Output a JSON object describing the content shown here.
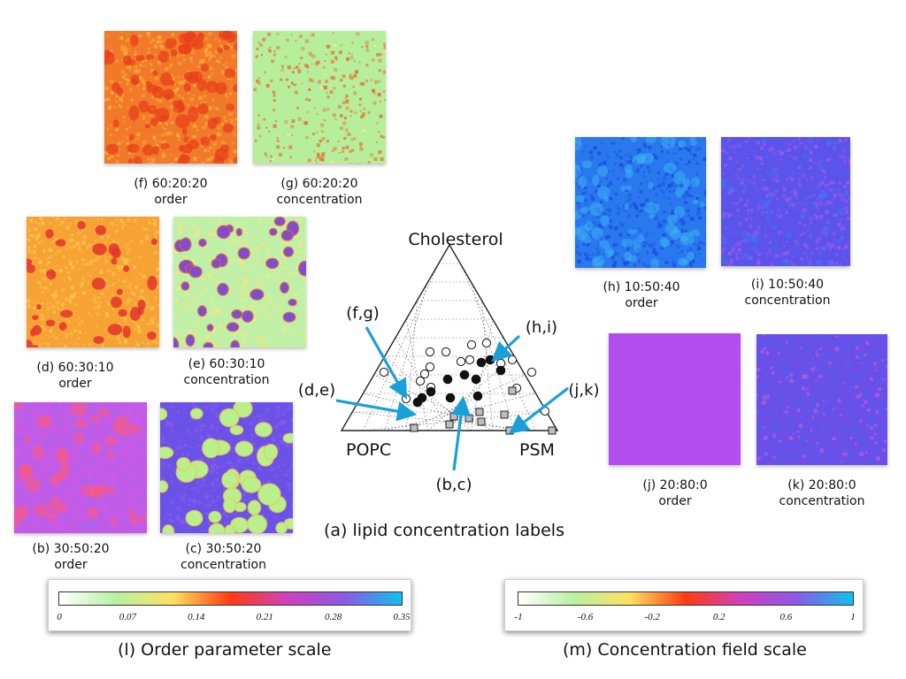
{
  "panels": {
    "f": {
      "label": "(f) 60:20:20",
      "sub": "order",
      "base": "#f07a2a",
      "spots": "#e8401a",
      "noise": "#ffb33a",
      "kind": "order-fine"
    },
    "g": {
      "label": "(g) 60:20:20",
      "sub": "concentration",
      "base": "#b6ee9c",
      "spots": "#fff07a",
      "noise": "#e86a2a",
      "kind": "conc-uniform"
    },
    "d": {
      "label": "(d) 60:30:10",
      "sub": "order",
      "base": "#f6a235",
      "spots": "#e3352a",
      "noise": "#ffc84c",
      "kind": "order-domains"
    },
    "e": {
      "label": "(e) 60:30:10",
      "sub": "concentration",
      "base": "#bff0a8",
      "spots": "#7a4ad8",
      "noise": "#f2e87e",
      "kind": "conc-domains"
    },
    "b": {
      "label": "(b) 30:50:20",
      "sub": "order",
      "base": "#c45ae6",
      "spots": "#ff5a7a",
      "noise": "#9a6af0",
      "kind": "order-b"
    },
    "c": {
      "label": "(c) 30:50:20",
      "sub": "concentration",
      "base": "#6a52e8",
      "spots": "#b9f08c",
      "noise": "#8a5ae8",
      "kind": "conc-c"
    },
    "h": {
      "label": "(h) 10:50:40",
      "sub": "order",
      "base": "#2a78ee",
      "spots": "#3ab0f4",
      "noise": "#1a4ae0",
      "kind": "order-h"
    },
    "i": {
      "label": "(i) 10:50:40",
      "sub": "concentration",
      "base": "#5a54ec",
      "spots": "#3a78f0",
      "noise": "#9a5ae8",
      "kind": "conc-i"
    },
    "j": {
      "label": "(j) 20:80:0",
      "sub": "order",
      "base": "#b24ef0",
      "spots": "#b24ef0",
      "noise": "#b24ef0",
      "kind": "flat"
    },
    "k": {
      "label": "(k) 20:80:0",
      "sub": "concentration",
      "base": "#6a50e8",
      "spots": "#b65ad8",
      "noise": "#4a62ee",
      "kind": "conc-k"
    }
  },
  "ternary": {
    "top_label": "Cholesterol",
    "left_label": "POPC",
    "right_label": "PSM",
    "callouts": {
      "fg": "(f,g)",
      "hi": "(h,i)",
      "de": "(d,e)",
      "jk": "(j,k)",
      "bc": "(b,c)"
    },
    "caption": "(a)  lipid concentration labels"
  },
  "order_scale": {
    "caption": "(l) Order parameter scale",
    "ticks": [
      "0",
      "0.07",
      "0.14",
      "0.21",
      "0.28",
      "0.35"
    ],
    "colors": [
      "#ffffff",
      "#b8f0a0",
      "#ffe060",
      "#ff3a10",
      "#d040c0",
      "#8a5ae8",
      "#10c0f0"
    ]
  },
  "conc_scale": {
    "caption": "(m) Concentration field scale",
    "ticks": [
      "-1",
      "-0.6",
      "-0.2",
      "0.2",
      "0.6",
      "1"
    ],
    "colors": [
      "#ffffff",
      "#b8f0a0",
      "#ffe060",
      "#ff3a10",
      "#d040c0",
      "#8a5ae8",
      "#10c0f0"
    ]
  },
  "accent": "#1aa0d8"
}
